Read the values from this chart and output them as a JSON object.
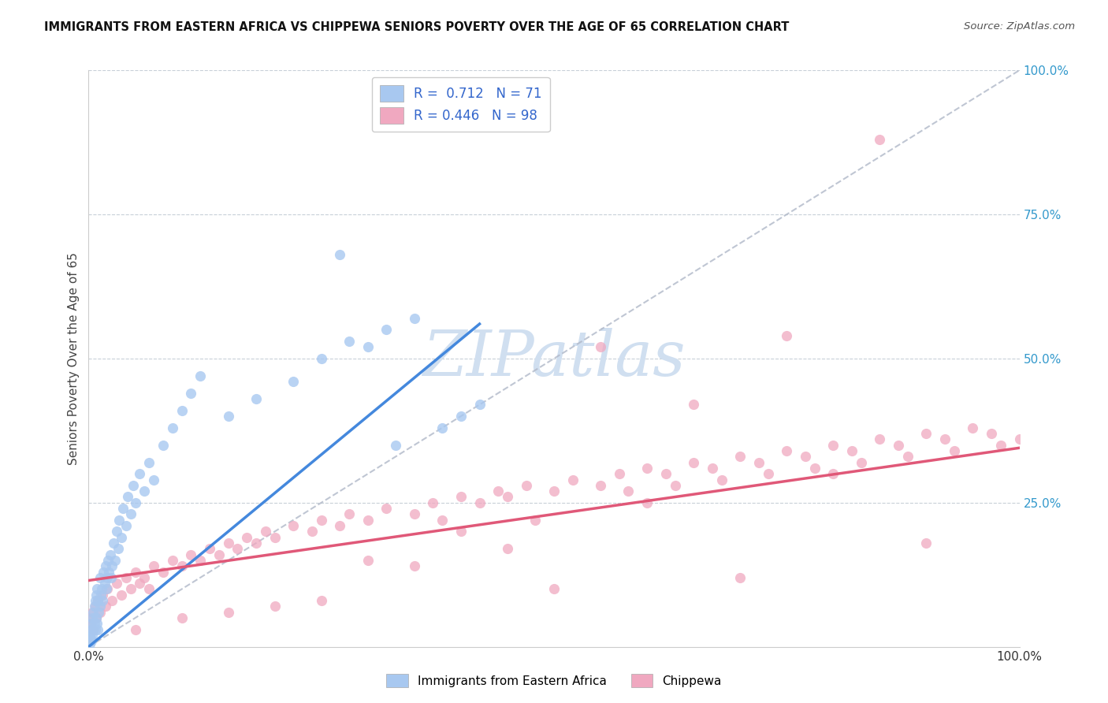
{
  "title": "IMMIGRANTS FROM EASTERN AFRICA VS CHIPPEWA SENIORS POVERTY OVER THE AGE OF 65 CORRELATION CHART",
  "source": "Source: ZipAtlas.com",
  "ylabel": "Seniors Poverty Over the Age of 65",
  "legend_label_1": "Immigrants from Eastern Africa",
  "legend_label_2": "Chippewa",
  "R1": 0.712,
  "N1": 71,
  "R2": 0.446,
  "N2": 98,
  "color1": "#a8c8f0",
  "color2": "#f0a8c0",
  "line_color1": "#4488dd",
  "line_color2": "#e05878",
  "watermark_color": "#d0dff0",
  "background_color": "#ffffff",
  "xlim": [
    0,
    1.0
  ],
  "ylim": [
    0,
    1.0
  ],
  "blue_line_x0": 0.0,
  "blue_line_y0": 0.0,
  "blue_line_x1": 0.42,
  "blue_line_y1": 0.56,
  "pink_line_x0": 0.0,
  "pink_line_y0": 0.115,
  "pink_line_x1": 1.0,
  "pink_line_y1": 0.345,
  "scatter1": {
    "x": [
      0.0,
      0.001,
      0.001,
      0.002,
      0.002,
      0.003,
      0.003,
      0.004,
      0.004,
      0.005,
      0.005,
      0.006,
      0.006,
      0.007,
      0.007,
      0.008,
      0.008,
      0.009,
      0.009,
      0.01,
      0.01,
      0.011,
      0.012,
      0.012,
      0.013,
      0.014,
      0.015,
      0.016,
      0.017,
      0.018,
      0.019,
      0.02,
      0.021,
      0.022,
      0.023,
      0.024,
      0.025,
      0.027,
      0.028,
      0.03,
      0.032,
      0.033,
      0.035,
      0.037,
      0.04,
      0.042,
      0.045,
      0.048,
      0.05,
      0.055,
      0.06,
      0.065,
      0.07,
      0.08,
      0.09,
      0.1,
      0.11,
      0.12,
      0.15,
      0.18,
      0.22,
      0.25,
      0.28,
      0.3,
      0.32,
      0.35,
      0.27,
      0.33,
      0.38,
      0.4,
      0.42
    ],
    "y": [
      0.01,
      0.02,
      0.005,
      0.015,
      0.03,
      0.01,
      0.04,
      0.02,
      0.05,
      0.03,
      0.06,
      0.04,
      0.07,
      0.03,
      0.08,
      0.05,
      0.09,
      0.04,
      0.1,
      0.03,
      0.08,
      0.06,
      0.07,
      0.12,
      0.09,
      0.1,
      0.08,
      0.13,
      0.11,
      0.14,
      0.1,
      0.12,
      0.15,
      0.13,
      0.16,
      0.12,
      0.14,
      0.18,
      0.15,
      0.2,
      0.17,
      0.22,
      0.19,
      0.24,
      0.21,
      0.26,
      0.23,
      0.28,
      0.25,
      0.3,
      0.27,
      0.32,
      0.29,
      0.35,
      0.38,
      0.41,
      0.44,
      0.47,
      0.4,
      0.43,
      0.46,
      0.5,
      0.53,
      0.52,
      0.55,
      0.57,
      0.68,
      0.35,
      0.38,
      0.4,
      0.42
    ]
  },
  "scatter2": {
    "x": [
      0.0,
      0.002,
      0.004,
      0.005,
      0.007,
      0.008,
      0.01,
      0.012,
      0.015,
      0.018,
      0.02,
      0.025,
      0.03,
      0.035,
      0.04,
      0.045,
      0.05,
      0.055,
      0.06,
      0.065,
      0.07,
      0.08,
      0.09,
      0.1,
      0.11,
      0.12,
      0.13,
      0.14,
      0.15,
      0.16,
      0.17,
      0.18,
      0.19,
      0.2,
      0.22,
      0.24,
      0.25,
      0.27,
      0.28,
      0.3,
      0.32,
      0.35,
      0.37,
      0.38,
      0.4,
      0.42,
      0.44,
      0.45,
      0.47,
      0.5,
      0.52,
      0.55,
      0.57,
      0.58,
      0.6,
      0.62,
      0.63,
      0.65,
      0.67,
      0.68,
      0.7,
      0.72,
      0.73,
      0.75,
      0.77,
      0.78,
      0.8,
      0.82,
      0.83,
      0.85,
      0.87,
      0.88,
      0.9,
      0.92,
      0.93,
      0.95,
      0.97,
      0.98,
      1.0,
      0.1,
      0.2,
      0.3,
      0.4,
      0.5,
      0.6,
      0.7,
      0.8,
      0.9,
      0.25,
      0.55,
      0.75,
      0.85,
      0.45,
      0.65,
      0.35,
      0.15,
      0.05,
      0.48
    ],
    "y": [
      0.05,
      0.04,
      0.06,
      0.03,
      0.07,
      0.05,
      0.08,
      0.06,
      0.09,
      0.07,
      0.1,
      0.08,
      0.11,
      0.09,
      0.12,
      0.1,
      0.13,
      0.11,
      0.12,
      0.1,
      0.14,
      0.13,
      0.15,
      0.14,
      0.16,
      0.15,
      0.17,
      0.16,
      0.18,
      0.17,
      0.19,
      0.18,
      0.2,
      0.19,
      0.21,
      0.2,
      0.22,
      0.21,
      0.23,
      0.22,
      0.24,
      0.23,
      0.25,
      0.22,
      0.26,
      0.25,
      0.27,
      0.26,
      0.28,
      0.27,
      0.29,
      0.28,
      0.3,
      0.27,
      0.31,
      0.3,
      0.28,
      0.32,
      0.31,
      0.29,
      0.33,
      0.32,
      0.3,
      0.34,
      0.33,
      0.31,
      0.35,
      0.34,
      0.32,
      0.36,
      0.35,
      0.33,
      0.37,
      0.36,
      0.34,
      0.38,
      0.37,
      0.35,
      0.36,
      0.05,
      0.07,
      0.15,
      0.2,
      0.1,
      0.25,
      0.12,
      0.3,
      0.18,
      0.08,
      0.52,
      0.54,
      0.88,
      0.17,
      0.42,
      0.14,
      0.06,
      0.03,
      0.22
    ]
  }
}
